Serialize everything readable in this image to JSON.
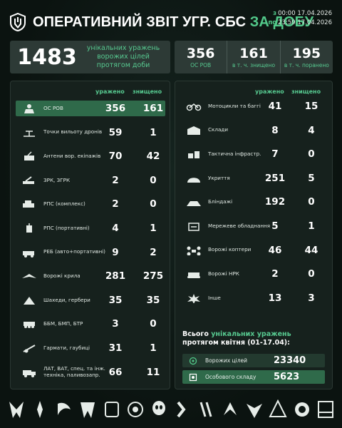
{
  "header": {
    "title_main": "ОПЕРАТИВНИЙ ЗВІТ УГР. СБС",
    "title_accent": "ЗА ДОБУ",
    "date_from_prefix": "з",
    "date_from": "00:00 17.04.2026",
    "date_to_prefix": "по",
    "date_to": "23:59 17.04.2026"
  },
  "summary": {
    "total": "1483",
    "total_desc": "унікальних уражень ворожих цілей протягом доби",
    "personnel": [
      {
        "num": "356",
        "label": "ОС РОВ"
      },
      {
        "num": "161",
        "label": "в т. ч. знищено"
      },
      {
        "num": "195",
        "label": "в т. ч. поранено"
      }
    ]
  },
  "columns": {
    "hit": "уражено",
    "destroyed": "знищено"
  },
  "left_rows": [
    {
      "icon": "soldier-icon",
      "name": "ОС РОВ",
      "hit": "356",
      "destroyed": "161",
      "highlight": true
    },
    {
      "icon": "drone-launch-site-icon",
      "name": "Точки вильоту дронів",
      "hit": "59",
      "destroyed": "1"
    },
    {
      "icon": "antenna-icon",
      "name": "Антени вор. екіпажів",
      "hit": "70",
      "destroyed": "42"
    },
    {
      "icon": "air-defense-icon",
      "name": "ЗРК, ЗГРК",
      "hit": "2",
      "destroyed": "0"
    },
    {
      "icon": "mlrs-icon",
      "name": "РПС (комплекс)",
      "hit": "2",
      "destroyed": "0"
    },
    {
      "icon": "radio-icon",
      "name": "РПС (портативні)",
      "hit": "4",
      "destroyed": "1"
    },
    {
      "icon": "ew-vehicle-icon",
      "name": "РЕБ (авто+портативні)",
      "hit": "9",
      "destroyed": "2"
    },
    {
      "icon": "enemy-wing-icon",
      "name": "Ворожі крила",
      "hit": "281",
      "destroyed": "275"
    },
    {
      "icon": "shahed-icon",
      "name": "Шахеди, гербери",
      "hit": "35",
      "destroyed": "35"
    },
    {
      "icon": "apc-icon",
      "name": "ББМ, БМП, БТР",
      "hit": "3",
      "destroyed": "0"
    },
    {
      "icon": "artillery-icon",
      "name": "Гармати, гаубиці",
      "hit": "31",
      "destroyed": "1"
    },
    {
      "icon": "truck-icon",
      "name": "ЛАТ, ВАТ, спец. та інж. техніка, паливозапр.",
      "hit": "66",
      "destroyed": "11"
    }
  ],
  "right_rows": [
    {
      "icon": "motorcycle-icon",
      "name": "Мотоцикли та баггі",
      "hit": "41",
      "destroyed": "15"
    },
    {
      "icon": "warehouse-icon",
      "name": "Склади",
      "hit": "8",
      "destroyed": "4"
    },
    {
      "icon": "infrastructure-icon",
      "name": "Тактична інфрастр.",
      "hit": "7",
      "destroyed": "0"
    },
    {
      "icon": "shelter-icon",
      "name": "Укриття",
      "hit": "251",
      "destroyed": "5"
    },
    {
      "icon": "dugout-icon",
      "name": "Бліндажі",
      "hit": "192",
      "destroyed": "0"
    },
    {
      "icon": "network-device-icon",
      "name": "Мережеве обладнання",
      "hit": "5",
      "destroyed": "1"
    },
    {
      "icon": "enemy-copter-icon",
      "name": "Ворожі коптери",
      "hit": "46",
      "destroyed": "44"
    },
    {
      "icon": "ground-robot-icon",
      "name": "Ворожі НРК",
      "hit": "2",
      "destroyed": "0"
    },
    {
      "icon": "explosion-icon",
      "name": "Інше",
      "hit": "13",
      "destroyed": "3"
    }
  ],
  "month": {
    "title_pre": "Всього",
    "title_accent": "унікальних уражень",
    "title_post": "протягом квітня (01-17.04):",
    "rows": [
      {
        "icon": "target-icon",
        "name": "Ворожих цілей",
        "value": "23340"
      },
      {
        "icon": "personnel-icon",
        "name": "Особового складу",
        "value": "5623"
      }
    ]
  },
  "footer_emblems": [
    "unit-emblem-1-icon",
    "unit-emblem-2-icon",
    "unit-emblem-3-icon",
    "unit-emblem-4-icon",
    "unit-emblem-5-icon",
    "unit-emblem-6-icon",
    "unit-emblem-7-icon",
    "unit-emblem-8-icon",
    "unit-emblem-9-icon",
    "unit-emblem-10-icon",
    "unit-emblem-11-icon",
    "unit-emblem-12-icon",
    "unit-emblem-13-icon",
    "unit-emblem-14-icon"
  ],
  "colors": {
    "accent": "#52c98a",
    "highlight": "#2f6a4a",
    "panel": "#16211d"
  }
}
